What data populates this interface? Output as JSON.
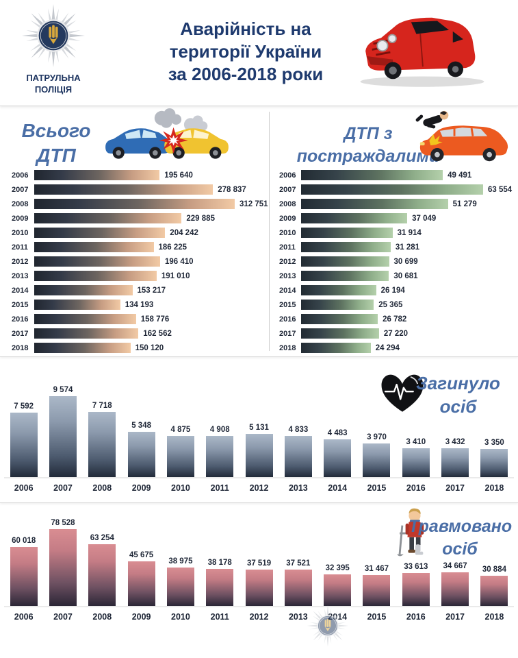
{
  "header": {
    "logo_line1": "ПАТРУЛЬНА",
    "logo_line2": "ПОЛІЦІЯ",
    "title_lines": [
      "Аварійність на",
      "території України",
      "за 2006-2018 роки"
    ]
  },
  "colors": {
    "main_title_blue": "#1e3a6e",
    "section_title_blue": "#4a6ea6",
    "label_dark": "#1e2636",
    "bar_total_gradient": [
      "#20262f",
      "#f2caa5"
    ],
    "bar_victims_gradient": [
      "#222b33",
      "#b4d0ab"
    ],
    "bar_died_gradient": [
      "#abb8c8",
      "#212a39"
    ],
    "bar_injured_gradient": [
      "#d98d92",
      "#2b2636"
    ]
  },
  "chart_data": [
    {
      "id": "total",
      "type": "bar",
      "orientation": "horizontal",
      "title": "Всього ДТП",
      "title_lines": [
        "Всього",
        "ДТП"
      ],
      "icon": "two-car-collision-icon",
      "categories": [
        "2006",
        "2007",
        "2008",
        "2009",
        "2010",
        "2011",
        "2012",
        "2013",
        "2014",
        "2015",
        "2016",
        "2017",
        "2018"
      ],
      "values": [
        195640,
        278837,
        312751,
        229885,
        204242,
        186225,
        196410,
        191010,
        153217,
        134193,
        158776,
        162562,
        150120
      ],
      "values_display": [
        "195 640",
        "278 837",
        "312 751",
        "229 885",
        "204 242",
        "186 225",
        "196 410",
        "191 010",
        "153 217",
        "134 193",
        "158 776",
        "162 562",
        "150 120"
      ],
      "xlim": [
        0,
        312751
      ],
      "grid": false,
      "legend": false
    },
    {
      "id": "victims",
      "type": "bar",
      "orientation": "horizontal",
      "title": "ДТП з постраждалими",
      "title_lines": [
        "ДТП з",
        "постраждалими"
      ],
      "icon": "car-hit-pedestrian-icon",
      "categories": [
        "2006",
        "2007",
        "2008",
        "2009",
        "2010",
        "2011",
        "2012",
        "2013",
        "2014",
        "2015",
        "2016",
        "2017",
        "2018"
      ],
      "values": [
        49491,
        63554,
        51279,
        37049,
        31914,
        31281,
        30699,
        30681,
        26194,
        25365,
        26782,
        27220,
        24294
      ],
      "values_display": [
        "49 491",
        "63 554",
        "51 279",
        "37 049",
        "31 914",
        "31 281",
        "30 699",
        "30 681",
        "26 194",
        "25 365",
        "26 782",
        "27 220",
        "24 294"
      ],
      "xlim": [
        0,
        63554
      ],
      "grid": false,
      "legend": false
    },
    {
      "id": "died",
      "type": "bar",
      "orientation": "vertical",
      "title": "Загинуло осіб",
      "title_lines": [
        "Загинуло",
        "осіб"
      ],
      "icon": "heart-ecg-icon",
      "categories": [
        "2006",
        "2007",
        "2008",
        "2009",
        "2010",
        "2011",
        "2012",
        "2013",
        "2014",
        "2015",
        "2016",
        "2017",
        "2018"
      ],
      "values": [
        7592,
        9574,
        7718,
        5348,
        4875,
        4908,
        5131,
        4833,
        4483,
        3970,
        3410,
        3432,
        3350
      ],
      "values_display": [
        "7 592",
        "9 574",
        "7 718",
        "5 348",
        "4 875",
        "4 908",
        "5 131",
        "4 833",
        "4 483",
        "3 970",
        "3 410",
        "3 432",
        "3 350"
      ],
      "ylim": [
        0,
        9574
      ],
      "grid": false,
      "legend": false
    },
    {
      "id": "injured",
      "type": "bar",
      "orientation": "vertical",
      "title": "Травмовано осіб",
      "title_lines": [
        "Травмовано",
        "осіб"
      ],
      "icon": "injured-person-icon",
      "categories": [
        "2006",
        "2007",
        "2008",
        "2009",
        "2010",
        "2011",
        "2012",
        "2013",
        "2014",
        "2015",
        "2016",
        "2017",
        "2018"
      ],
      "values": [
        60018,
        78528,
        63254,
        45675,
        38975,
        38178,
        37519,
        37521,
        32395,
        31467,
        33613,
        34667,
        30884
      ],
      "values_display": [
        "60 018",
        "78 528",
        "63 254",
        "45 675",
        "38 975",
        "38 178",
        "37 519",
        "37 521",
        "32 395",
        "31 467",
        "33 613",
        "34 667",
        "30 884"
      ],
      "ylim": [
        0,
        78528
      ],
      "grid": false,
      "legend": false
    }
  ]
}
